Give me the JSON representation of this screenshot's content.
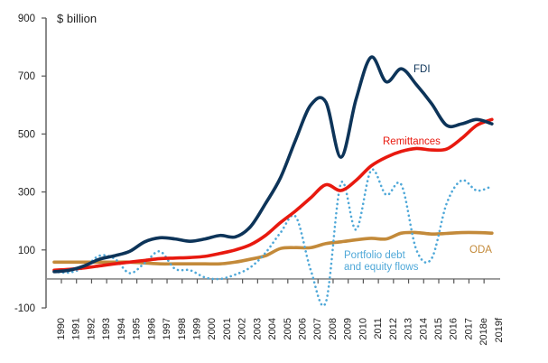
{
  "chart_data": {
    "type": "line",
    "title": "",
    "ylabel": "$ billion",
    "xlabel": "",
    "ylim": [
      -100,
      900
    ],
    "yticks": [
      -100,
      100,
      300,
      500,
      700,
      900
    ],
    "grid": false,
    "legend": "inline labels",
    "categories": [
      "1990",
      "1991",
      "1992",
      "1993",
      "1994",
      "1995",
      "1996",
      "1997",
      "1998",
      "1999",
      "2000",
      "2001",
      "2002",
      "2003",
      "2004",
      "2005",
      "2006",
      "2007",
      "2008",
      "2009",
      "2010",
      "2011",
      "2012",
      "2013",
      "2014",
      "2015",
      "2016",
      "2017",
      "2018e",
      "2019f"
    ],
    "series": [
      {
        "name": "FDI",
        "label": "FDI",
        "color": "#0d3459",
        "style": "solid",
        "values": [
          25,
          30,
          45,
          68,
          80,
          95,
          128,
          142,
          138,
          130,
          138,
          150,
          145,
          180,
          260,
          350,
          480,
          600,
          610,
          420,
          620,
          765,
          680,
          725,
          670,
          605,
          530,
          535,
          550,
          535
        ]
      },
      {
        "name": "Remittances",
        "label": "Remittances",
        "color": "#e8190f",
        "style": "solid",
        "values": [
          30,
          33,
          38,
          45,
          52,
          58,
          64,
          70,
          72,
          74,
          78,
          88,
          100,
          118,
          150,
          195,
          235,
          280,
          325,
          305,
          340,
          390,
          420,
          440,
          450,
          445,
          448,
          485,
          530,
          550
        ]
      },
      {
        "name": "ODA",
        "label": "ODA",
        "color": "#c38a3a",
        "style": "solid",
        "values": [
          58,
          58,
          58,
          58,
          58,
          58,
          55,
          52,
          52,
          52,
          52,
          52,
          58,
          68,
          80,
          105,
          108,
          108,
          122,
          128,
          135,
          140,
          138,
          158,
          160,
          155,
          157,
          160,
          160,
          158
        ]
      },
      {
        "name": "Portfolio debt and equity flows",
        "label_lines": [
          "Portfolio debt",
          "and equity flows"
        ],
        "color": "#4fa8d8",
        "style": "dotted",
        "values": [
          25,
          22,
          40,
          80,
          70,
          20,
          55,
          95,
          35,
          30,
          5,
          0,
          15,
          40,
          90,
          160,
          215,
          30,
          -80,
          330,
          170,
          375,
          290,
          325,
          100,
          70,
          260,
          340,
          305,
          320
        ]
      }
    ]
  }
}
